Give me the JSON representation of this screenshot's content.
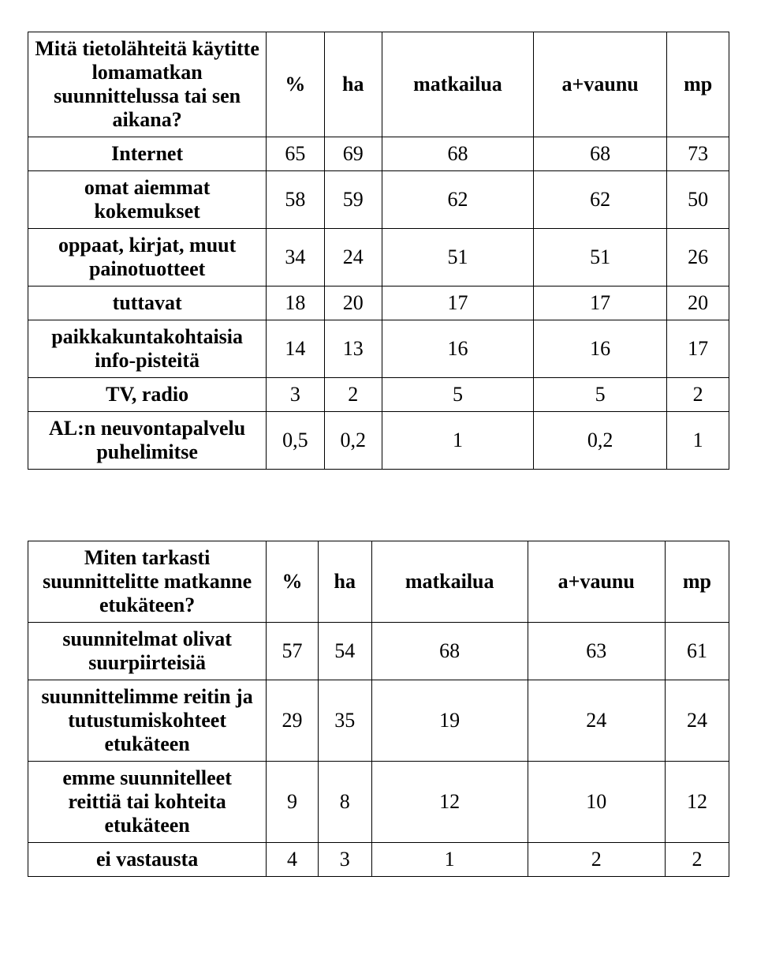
{
  "table1": {
    "header": {
      "question": "Mitä tietolähteitä käytitte lomamatkan suunnittelussa tai sen aikana?",
      "cols": [
        "%",
        "ha",
        "matkailua",
        "a+vaunu",
        "mp"
      ]
    },
    "rows": [
      {
        "label": "Internet",
        "values": [
          "65",
          "69",
          "68",
          "68",
          "73"
        ]
      },
      {
        "label": "omat aiemmat kokemukset",
        "values": [
          "58",
          "59",
          "62",
          "62",
          "50"
        ]
      },
      {
        "label": "oppaat, kirjat, muut painotuotteet",
        "values": [
          "34",
          "24",
          "51",
          "51",
          "26"
        ]
      },
      {
        "label": "tuttavat",
        "values": [
          "18",
          "20",
          "17",
          "17",
          "20"
        ]
      },
      {
        "label": "paikkakuntakohtaisia info-pisteitä",
        "values": [
          "14",
          "13",
          "16",
          "16",
          "17"
        ]
      },
      {
        "label": "TV, radio",
        "values": [
          "3",
          "2",
          "5",
          "5",
          "2"
        ]
      },
      {
        "label": "AL:n neuvontapalvelu puhelimitse",
        "values": [
          "0,5",
          "0,2",
          "1",
          "0,2",
          "1"
        ]
      }
    ]
  },
  "table2": {
    "header": {
      "question": "Miten tarkasti suunnittelitte matkanne etukäteen?",
      "cols": [
        "%",
        "ha",
        "matkailua",
        "a+vaunu",
        "mp"
      ]
    },
    "rows": [
      {
        "label": "suunnitelmat olivat suurpiirteisiä",
        "values": [
          "57",
          "54",
          "68",
          "63",
          "61"
        ]
      },
      {
        "label": "suunnittelimme reitin ja tutustumiskohteet etukäteen",
        "values": [
          "29",
          "35",
          "19",
          "24",
          "24"
        ]
      },
      {
        "label": "emme suunnitelleet reittiä tai kohteita etukäteen",
        "values": [
          "9",
          "8",
          "12",
          "10",
          "12"
        ]
      },
      {
        "label": "ei vastausta",
        "values": [
          "4",
          "3",
          "1",
          "2",
          "2"
        ]
      }
    ]
  },
  "styling": {
    "font_family": "Times New Roman",
    "font_size_pt": 20,
    "text_color": "#000000",
    "background_color": "#ffffff",
    "border_color": "#000000",
    "col_widths_pct": [
      34,
      11,
      11,
      18,
      15,
      11
    ]
  }
}
